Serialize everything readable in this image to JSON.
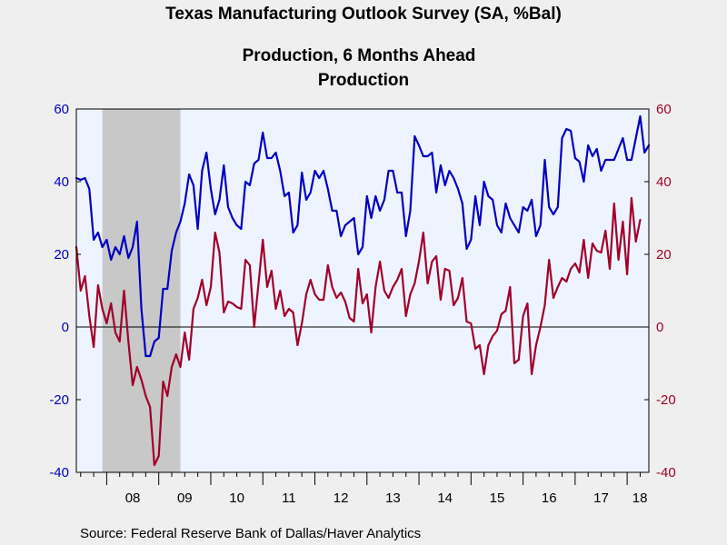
{
  "chart_data": {
    "type": "line",
    "title": "Texas Manufacturing Outlook Survey (SA, %Bal)",
    "subtitle_lines": [
      {
        "text": "Production, 6 Months Ahead",
        "color": "#0000c0"
      },
      {
        "text": "Production",
        "color": "#a0002a"
      }
    ],
    "source": "Source:  Federal Reserve Bank of Dallas/Haver Analytics",
    "x_tick_labels": [
      "08",
      "09",
      "10",
      "11",
      "12",
      "13",
      "14",
      "15",
      "16",
      "17",
      "18"
    ],
    "x_start": "2007-06",
    "x_end": "2018-06",
    "ylim": [
      -40,
      60
    ],
    "y_ticks": [
      -40,
      -20,
      0,
      20,
      40,
      60
    ],
    "y_tick_labels": [
      "-40",
      "-20",
      "0",
      "20",
      "40",
      "60"
    ],
    "left_axis_color": "#0000c0",
    "right_axis_color": "#a0002a",
    "recession": {
      "start": "2007-12",
      "end": "2009-06",
      "color": "#c8c8c8"
    },
    "plot_background": "#eef4ff",
    "grid": false,
    "zero_line": true,
    "series": [
      {
        "name": "Production, 6 Months Ahead",
        "color": "#0000c0",
        "axis": "left",
        "values": [
          41,
          40.5,
          41,
          38,
          24,
          26,
          22,
          24,
          18.5,
          22,
          20,
          25,
          19,
          22,
          29,
          5,
          -8,
          -8,
          -4,
          -3,
          10.5,
          10.5,
          21,
          26,
          29,
          34,
          42,
          39,
          27,
          43,
          48,
          38,
          31,
          35,
          44.5,
          33,
          30,
          28,
          27,
          40,
          39,
          45,
          46,
          53.5,
          46.5,
          46.5,
          48,
          43,
          36,
          37,
          26,
          28,
          42.5,
          35,
          37,
          43,
          41,
          43,
          38,
          32,
          32,
          25,
          28,
          29,
          30,
          20,
          22,
          36,
          30,
          36,
          32,
          35,
          43,
          43,
          37,
          37,
          25,
          32,
          52.5,
          50,
          47,
          47,
          48,
          37,
          44.5,
          39,
          43,
          41,
          38,
          34,
          21.5,
          24,
          36,
          28,
          40,
          36,
          35,
          28,
          26,
          34,
          30,
          28,
          26,
          33,
          32,
          35,
          25,
          28,
          46,
          33,
          31,
          33,
          52,
          54.5,
          54,
          46.5,
          45.5,
          40,
          50,
          47,
          49,
          43,
          46,
          46,
          46,
          49,
          52,
          46,
          46,
          52,
          58,
          48,
          50
        ]
      },
      {
        "name": "Production",
        "color": "#a0002a",
        "axis": "right",
        "values": [
          22,
          10,
          14,
          3,
          -5.5,
          11.5,
          5,
          1,
          6.5,
          -1.5,
          -4,
          10,
          -4,
          -16,
          -11,
          -14.5,
          -19,
          -22,
          -38,
          -35.5,
          -15,
          -19,
          -11,
          -7.5,
          -11,
          -1.5,
          -9,
          5,
          8,
          13,
          6,
          11,
          26,
          20.5,
          4,
          7,
          6.5,
          5.5,
          5,
          18.5,
          17,
          0,
          12,
          24,
          11,
          15.5,
          5,
          10,
          3,
          5,
          4,
          -5,
          1,
          9,
          13,
          9,
          7.5,
          7.5,
          17,
          11,
          8,
          9.5,
          7,
          2.5,
          1.5,
          16,
          6.5,
          9,
          -1.5,
          11,
          18,
          10,
          8,
          11,
          13,
          16,
          3,
          9,
          12,
          18,
          26,
          12,
          18,
          19.5,
          7.5,
          16,
          15.5,
          6,
          8,
          13.5,
          1.5,
          1,
          -6,
          -5,
          -13,
          -5,
          -2.5,
          -1,
          3.5,
          4.5,
          11,
          -10,
          -9,
          3,
          6.5,
          -13,
          -5,
          0,
          6,
          18.5,
          8,
          11,
          13.5,
          12.5,
          16,
          17.5,
          15,
          24,
          13.5,
          23,
          21,
          20.5,
          26.5,
          16,
          34,
          18.5,
          29,
          14.5,
          35.5,
          23.5,
          29.5
        ]
      }
    ]
  }
}
